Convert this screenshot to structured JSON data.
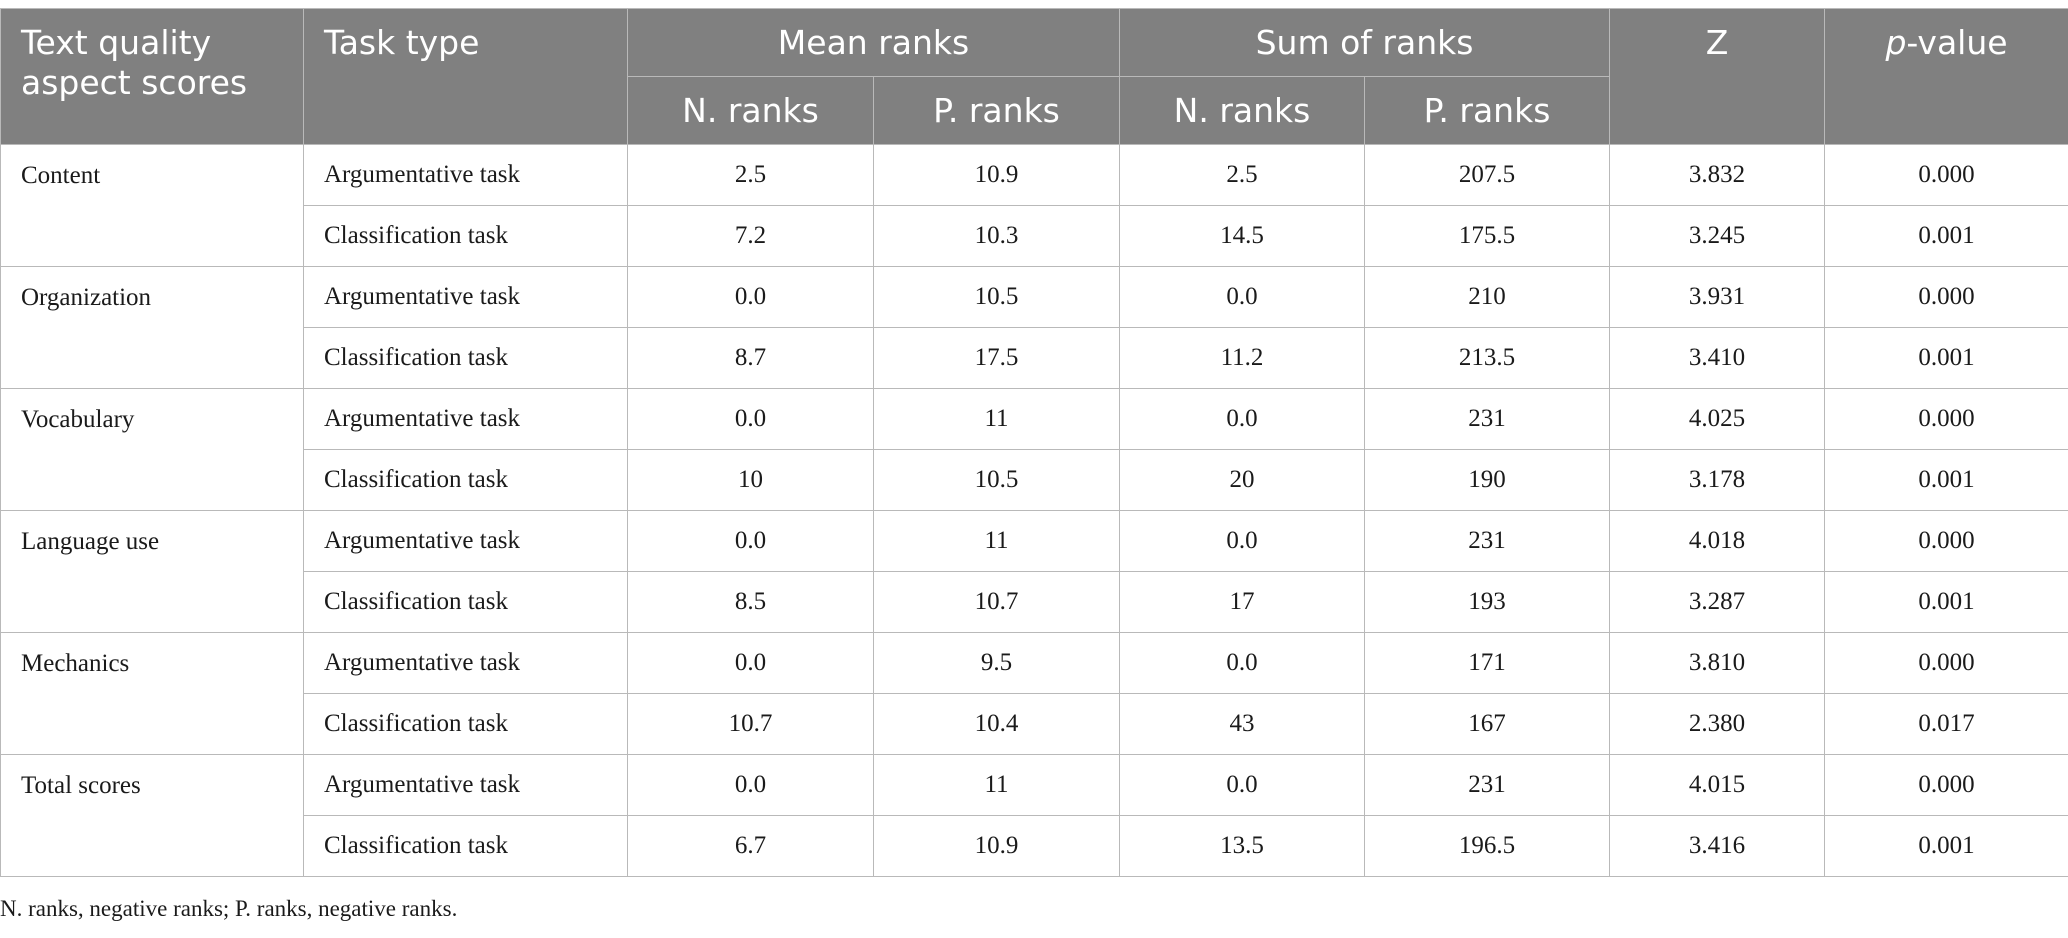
{
  "table": {
    "headers": {
      "aspect": "Text quality aspect scores",
      "task": "Task type",
      "mean_ranks": "Mean ranks",
      "sum_ranks": "Sum of ranks",
      "z": "Z",
      "p_italic": "p",
      "p_rest": "-value",
      "n_ranks": "N. ranks",
      "p_ranks": "P. ranks"
    },
    "groups": [
      {
        "aspect": "Content",
        "rows": [
          {
            "task": "Argumentative task",
            "mean_n": "2.5",
            "mean_p": "10.9",
            "sum_n": "2.5",
            "sum_p": "207.5",
            "z": "3.832",
            "p": "0.000"
          },
          {
            "task": "Classification task",
            "mean_n": "7.2",
            "mean_p": "10.3",
            "sum_n": "14.5",
            "sum_p": "175.5",
            "z": "3.245",
            "p": "0.001"
          }
        ]
      },
      {
        "aspect": "Organization",
        "rows": [
          {
            "task": "Argumentative task",
            "mean_n": "0.0",
            "mean_p": "10.5",
            "sum_n": "0.0",
            "sum_p": "210",
            "z": "3.931",
            "p": "0.000"
          },
          {
            "task": "Classification task",
            "mean_n": "8.7",
            "mean_p": "17.5",
            "sum_n": "11.2",
            "sum_p": "213.5",
            "z": "3.410",
            "p": "0.001"
          }
        ]
      },
      {
        "aspect": "Vocabulary",
        "rows": [
          {
            "task": "Argumentative task",
            "mean_n": "0.0",
            "mean_p": "11",
            "sum_n": "0.0",
            "sum_p": "231",
            "z": "4.025",
            "p": "0.000"
          },
          {
            "task": "Classification task",
            "mean_n": "10",
            "mean_p": "10.5",
            "sum_n": "20",
            "sum_p": "190",
            "z": "3.178",
            "p": "0.001"
          }
        ]
      },
      {
        "aspect": "Language use",
        "rows": [
          {
            "task": "Argumentative task",
            "mean_n": "0.0",
            "mean_p": "11",
            "sum_n": "0.0",
            "sum_p": "231",
            "z": "4.018",
            "p": "0.000"
          },
          {
            "task": "Classification task",
            "mean_n": "8.5",
            "mean_p": "10.7",
            "sum_n": "17",
            "sum_p": "193",
            "z": "3.287",
            "p": "0.001"
          }
        ]
      },
      {
        "aspect": "Mechanics",
        "rows": [
          {
            "task": "Argumentative task",
            "mean_n": "0.0",
            "mean_p": "9.5",
            "sum_n": "0.0",
            "sum_p": "171",
            "z": "3.810",
            "p": "0.000"
          },
          {
            "task": "Classification task",
            "mean_n": "10.7",
            "mean_p": "10.4",
            "sum_n": "43",
            "sum_p": "167",
            "z": "2.380",
            "p": "0.017"
          }
        ]
      },
      {
        "aspect": "Total scores",
        "rows": [
          {
            "task": "Argumentative task",
            "mean_n": "0.0",
            "mean_p": "11",
            "sum_n": "0.0",
            "sum_p": "231",
            "z": "4.015",
            "p": "0.000"
          },
          {
            "task": "Classification task",
            "mean_n": "6.7",
            "mean_p": "10.9",
            "sum_n": "13.5",
            "sum_p": "196.5",
            "z": "3.416",
            "p": "0.001"
          }
        ]
      }
    ]
  },
  "footnote": "N. ranks, negative ranks; P. ranks, negative ranks."
}
